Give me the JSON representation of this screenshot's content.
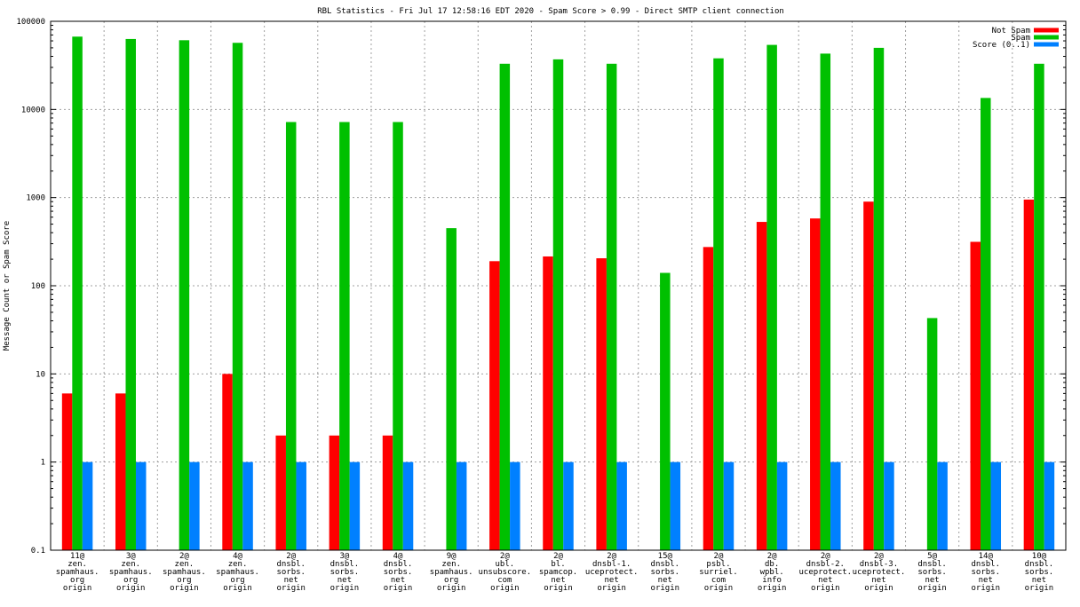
{
  "chart_data": {
    "type": "bar",
    "title": "RBL Statistics - Fri Jul 17 12:58:16 EDT 2020 - Spam Score > 0.99 - Direct SMTP client connection",
    "xlabel": "",
    "ylabel": "Message Count or Spam Score",
    "yscale": "log",
    "ylim": [
      0.1,
      100000
    ],
    "yticks": [
      "0.1",
      "1",
      "10",
      "100",
      "1000",
      "10000",
      "100000"
    ],
    "grid": true,
    "legend_position": "top-right",
    "categories": [
      [
        "11@",
        "zen.",
        "spamhaus.",
        "org",
        "origin"
      ],
      [
        "3@",
        "zen.",
        "spamhaus.",
        "org",
        "origin"
      ],
      [
        "2@",
        "zen.",
        "spamhaus.",
        "org",
        "origin"
      ],
      [
        "4@",
        "zen.",
        "spamhaus.",
        "org",
        "origin"
      ],
      [
        "2@",
        "dnsbl.",
        "sorbs.",
        "net",
        "origin"
      ],
      [
        "3@",
        "dnsbl.",
        "sorbs.",
        "net",
        "origin"
      ],
      [
        "4@",
        "dnsbl.",
        "sorbs.",
        "net",
        "origin"
      ],
      [
        "9@",
        "zen.",
        "spamhaus.",
        "org",
        "origin"
      ],
      [
        "2@",
        "ubl.",
        "unsubscore.",
        "com",
        "origin"
      ],
      [
        "2@",
        "bl.",
        "spamcop.",
        "net",
        "origin"
      ],
      [
        "2@",
        "dnsbl-1.",
        "uceprotect.",
        "net",
        "origin"
      ],
      [
        "15@",
        "dnsbl.",
        "sorbs.",
        "net",
        "origin"
      ],
      [
        "2@",
        "psbl.",
        "surriel.",
        "com",
        "origin"
      ],
      [
        "2@",
        "db.",
        "wpbl.",
        "info",
        "origin"
      ],
      [
        "2@",
        "dnsbl-2.",
        "uceprotect.",
        "net",
        "origin"
      ],
      [
        "2@",
        "dnsbl-3.",
        "uceprotect.",
        "net",
        "origin"
      ],
      [
        "5@",
        "dnsbl.",
        "sorbs.",
        "net",
        "origin"
      ],
      [
        "14@",
        "dnsbl.",
        "sorbs.",
        "net",
        "origin"
      ],
      [
        "10@",
        "dnsbl.",
        "sorbs.",
        "net",
        "origin"
      ]
    ],
    "series": [
      {
        "name": "Not Spam",
        "color": "#ff0000",
        "values": [
          6,
          6,
          null,
          10,
          2,
          2,
          2,
          null,
          190,
          215,
          205,
          null,
          275,
          530,
          580,
          900,
          null,
          315,
          950
        ]
      },
      {
        "name": "Spam",
        "color": "#00c000",
        "values": [
          67000,
          63000,
          61000,
          57000,
          7200,
          7200,
          7200,
          450,
          33000,
          37000,
          33000,
          140,
          38000,
          54000,
          43000,
          50000,
          43,
          13500,
          33000
        ]
      },
      {
        "name": "Score (0..1)",
        "color": "#0080ff",
        "values": [
          1,
          1,
          1,
          1,
          1,
          1,
          1,
          1,
          1,
          1,
          1,
          1,
          1,
          1,
          1,
          1,
          1,
          1,
          1
        ]
      }
    ]
  }
}
